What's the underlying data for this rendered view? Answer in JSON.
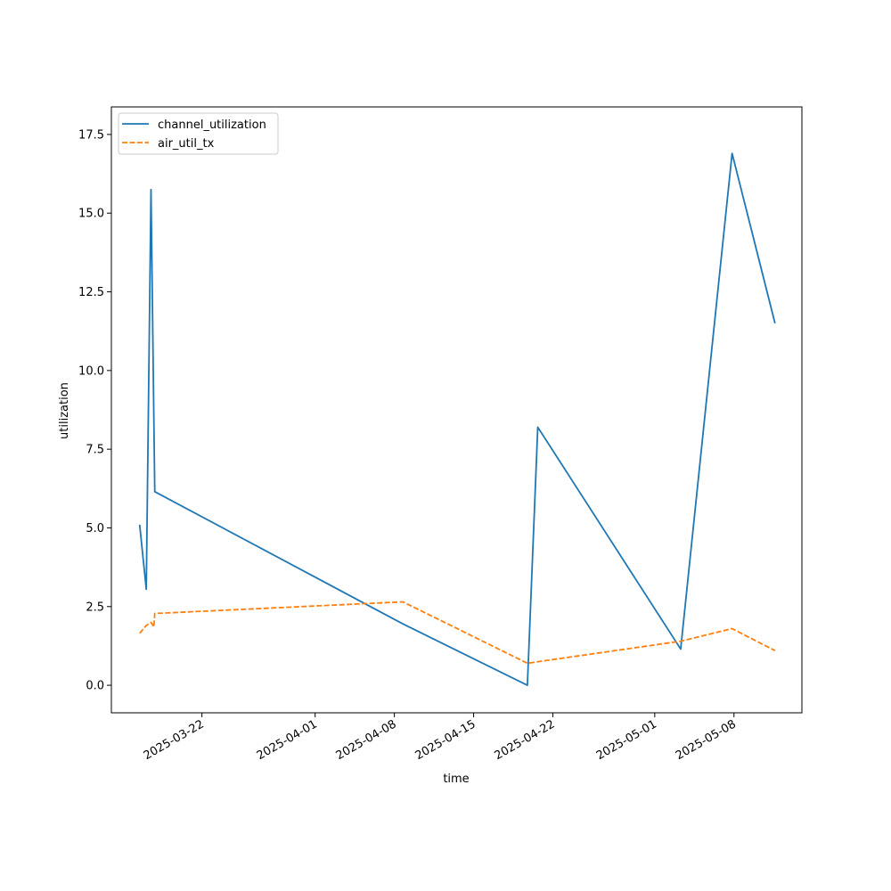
{
  "chart_data": {
    "type": "line",
    "xlabel": "time",
    "ylabel": "utilization",
    "x_type": "date",
    "xlim": [
      "2025-03-14",
      "2025-05-14"
    ],
    "ylim": [
      -0.875,
      18.375
    ],
    "x_ticks": [
      "2025-03-22",
      "2025-04-01",
      "2025-04-08",
      "2025-04-15",
      "2025-04-22",
      "2025-05-01",
      "2025-05-08"
    ],
    "y_ticks": [
      "0.0",
      "2.5",
      "5.0",
      "7.5",
      "10.0",
      "12.5",
      "15.0",
      "17.5"
    ],
    "legend_position": "top-left",
    "grid": false,
    "series": [
      {
        "name": "channel_utilization",
        "color": "#1f77b4",
        "style": "solid",
        "points": [
          {
            "x": "2025-03-16 12:00",
            "y": 5.1
          },
          {
            "x": "2025-03-17 02:00",
            "y": 3.05
          },
          {
            "x": "2025-03-17 12:00",
            "y": 15.75
          },
          {
            "x": "2025-03-17 20:00",
            "y": 6.15
          },
          {
            "x": "2025-04-08 18:00",
            "y": 1.95
          },
          {
            "x": "2025-04-19 18:00",
            "y": 0.0
          },
          {
            "x": "2025-04-20 16:00",
            "y": 8.2
          },
          {
            "x": "2025-05-03 07:00",
            "y": 1.15
          },
          {
            "x": "2025-05-07 20:00",
            "y": 16.9
          },
          {
            "x": "2025-05-11 15:00",
            "y": 11.5
          }
        ]
      },
      {
        "name": "air_util_tx",
        "color": "#ff7f0e",
        "style": "dashed",
        "points": [
          {
            "x": "2025-03-16 12:00",
            "y": 1.65
          },
          {
            "x": "2025-03-17 02:00",
            "y": 1.9
          },
          {
            "x": "2025-03-17 12:00",
            "y": 2.0
          },
          {
            "x": "2025-03-17 18:00",
            "y": 1.85
          },
          {
            "x": "2025-03-17 20:00",
            "y": 2.28
          },
          {
            "x": "2025-04-08 18:00",
            "y": 2.65
          },
          {
            "x": "2025-04-19 18:00",
            "y": 0.7
          },
          {
            "x": "2025-05-03 07:00",
            "y": 1.4
          },
          {
            "x": "2025-05-07 20:00",
            "y": 1.8
          },
          {
            "x": "2025-05-11 15:00",
            "y": 1.1
          }
        ]
      }
    ]
  }
}
